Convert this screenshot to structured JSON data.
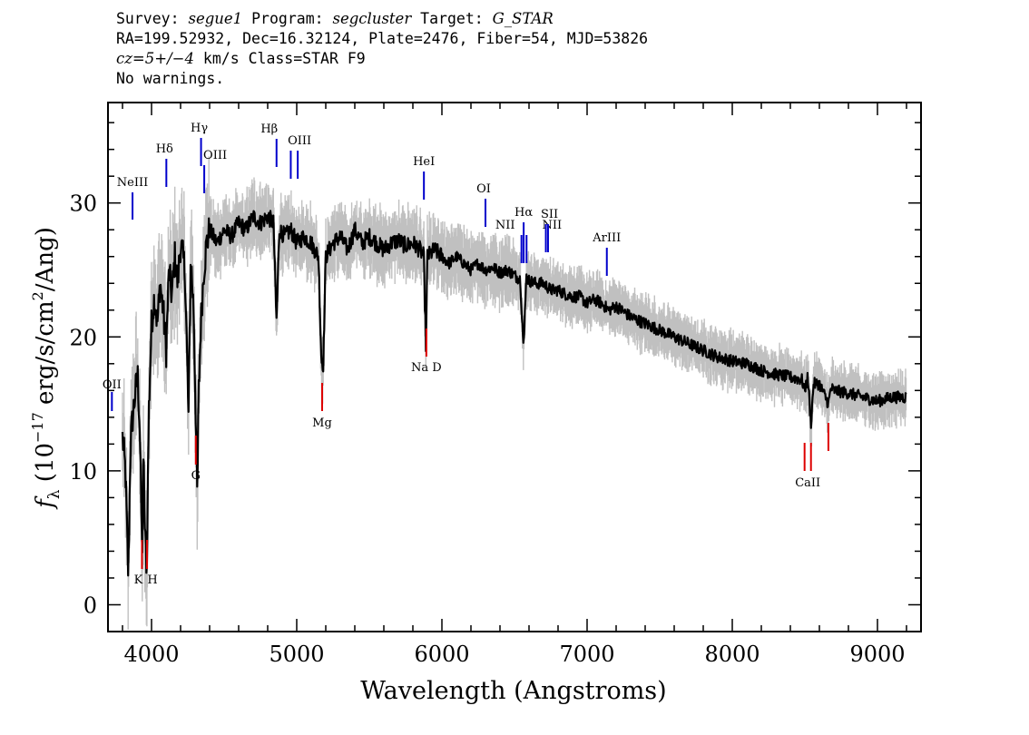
{
  "header": {
    "line1": {
      "survey_label": "Survey: ",
      "survey": "segue1",
      "program_label": " Program: ",
      "program": "segcluster",
      "target_label": " Target: ",
      "target": "G_STAR"
    },
    "line2": "RA=199.52932, Dec=16.32124, Plate=2476, Fiber=54, MJD=53826",
    "line3": {
      "cz": "cz=5+/−4",
      "rest": " km/s Class=STAR F9"
    },
    "line4": "No warnings."
  },
  "chart_data": {
    "type": "line",
    "title": "",
    "xlabel": "Wavelength (Angstroms)",
    "ylabel": "f_λ (10^-17 erg/s/cm^2/Ang)",
    "xlim": [
      3700,
      9300
    ],
    "ylim": [
      -2,
      37.5
    ],
    "xticks": [
      4000,
      5000,
      6000,
      7000,
      8000,
      9000
    ],
    "yticks": [
      0,
      10,
      20,
      30
    ],
    "ylabel_parts": {
      "f": "f",
      "lambda": "λ",
      "pre": " (10",
      "exp1": "−17",
      "mid": " erg/s/cm",
      "exp2": "2",
      "post": "/Ang)"
    },
    "series": [
      {
        "role": "flux",
        "color": "#000000",
        "points": [
          [
            3800,
            12.5
          ],
          [
            3820,
            10
          ],
          [
            3840,
            2
          ],
          [
            3855,
            12
          ],
          [
            3870,
            14
          ],
          [
            3890,
            16
          ],
          [
            3905,
            17
          ],
          [
            3920,
            13
          ],
          [
            3935,
            3.5
          ],
          [
            3945,
            11
          ],
          [
            3955,
            5
          ],
          [
            3968,
            2.8
          ],
          [
            3980,
            14
          ],
          [
            4000,
            21
          ],
          [
            4020,
            23
          ],
          [
            4040,
            21
          ],
          [
            4060,
            24
          ],
          [
            4080,
            22
          ],
          [
            4101,
            19
          ],
          [
            4120,
            25
          ],
          [
            4140,
            23
          ],
          [
            4160,
            26
          ],
          [
            4180,
            24
          ],
          [
            4200,
            27
          ],
          [
            4230,
            25
          ],
          [
            4255,
            14
          ],
          [
            4270,
            26
          ],
          [
            4290,
            22
          ],
          [
            4305,
            14
          ],
          [
            4315,
            8
          ],
          [
            4325,
            16
          ],
          [
            4340,
            21
          ],
          [
            4360,
            25
          ],
          [
            4380,
            27
          ],
          [
            4400,
            28
          ],
          [
            4450,
            27
          ],
          [
            4500,
            28
          ],
          [
            4550,
            27.5
          ],
          [
            4600,
            28.5
          ],
          [
            4650,
            28
          ],
          [
            4700,
            29
          ],
          [
            4750,
            28.5
          ],
          [
            4800,
            29
          ],
          [
            4840,
            28.5
          ],
          [
            4861,
            21
          ],
          [
            4880,
            28
          ],
          [
            4920,
            27.5
          ],
          [
            4960,
            28
          ],
          [
            5000,
            27
          ],
          [
            5050,
            27.5
          ],
          [
            5100,
            27
          ],
          [
            5150,
            26
          ],
          [
            5170,
            18.2
          ],
          [
            5183,
            18
          ],
          [
            5200,
            26
          ],
          [
            5250,
            27
          ],
          [
            5300,
            27.5
          ],
          [
            5350,
            26.5
          ],
          [
            5400,
            28
          ],
          [
            5450,
            27
          ],
          [
            5500,
            27.5
          ],
          [
            5550,
            27
          ],
          [
            5600,
            26.5
          ],
          [
            5650,
            27
          ],
          [
            5700,
            27.2
          ],
          [
            5750,
            26.8
          ],
          [
            5800,
            27
          ],
          [
            5850,
            26.5
          ],
          [
            5875,
            26
          ],
          [
            5890,
            19.2
          ],
          [
            5900,
            26
          ],
          [
            5950,
            26.5
          ],
          [
            6000,
            26
          ],
          [
            6050,
            25.5
          ],
          [
            6100,
            26
          ],
          [
            6150,
            25.5
          ],
          [
            6200,
            25
          ],
          [
            6250,
            25.5
          ],
          [
            6300,
            25
          ],
          [
            6350,
            25.2
          ],
          [
            6400,
            24.8
          ],
          [
            6450,
            25
          ],
          [
            6500,
            24.6
          ],
          [
            6540,
            24.3
          ],
          [
            6563,
            19
          ],
          [
            6580,
            24.5
          ],
          [
            6600,
            24.2
          ],
          [
            6650,
            24
          ],
          [
            6700,
            24
          ],
          [
            6750,
            23.5
          ],
          [
            6800,
            23.5
          ],
          [
            6850,
            23.2
          ],
          [
            6900,
            23
          ],
          [
            6950,
            23
          ],
          [
            7000,
            22.5
          ],
          [
            7050,
            22.8
          ],
          [
            7100,
            22.5
          ],
          [
            7150,
            22
          ],
          [
            7200,
            22.3
          ],
          [
            7300,
            21.5
          ],
          [
            7400,
            21
          ],
          [
            7500,
            20.5
          ],
          [
            7600,
            20
          ],
          [
            7700,
            19.5
          ],
          [
            7800,
            19
          ],
          [
            7900,
            18.5
          ],
          [
            8000,
            18.2
          ],
          [
            8100,
            18
          ],
          [
            8200,
            17.5
          ],
          [
            8300,
            17.2
          ],
          [
            8400,
            17
          ],
          [
            8480,
            16.8
          ],
          [
            8498,
            16
          ],
          [
            8520,
            17
          ],
          [
            8542,
            13.5
          ],
          [
            8560,
            16.5
          ],
          [
            8600,
            16.5
          ],
          [
            8662,
            15
          ],
          [
            8680,
            16.2
          ],
          [
            8700,
            16
          ],
          [
            8800,
            15.8
          ],
          [
            8900,
            15.5
          ],
          [
            9000,
            15.2
          ],
          [
            9100,
            15.5
          ],
          [
            9200,
            15.5
          ]
        ]
      }
    ],
    "emission_lines": [
      "OII",
      "NeIII",
      "Hδ",
      "Hγ",
      "OIII",
      "Hβ",
      "OIII",
      "HeI",
      "OI",
      "NII",
      "Hα",
      "NII",
      "SII",
      "ArIII"
    ],
    "absorption_lines": [
      "K",
      "H",
      "G",
      "Mg",
      "Na D",
      "CaII"
    ],
    "emission_color": "#0000cc",
    "absorption_color": "#dd0000",
    "noise_color": "#c0c0c0"
  }
}
